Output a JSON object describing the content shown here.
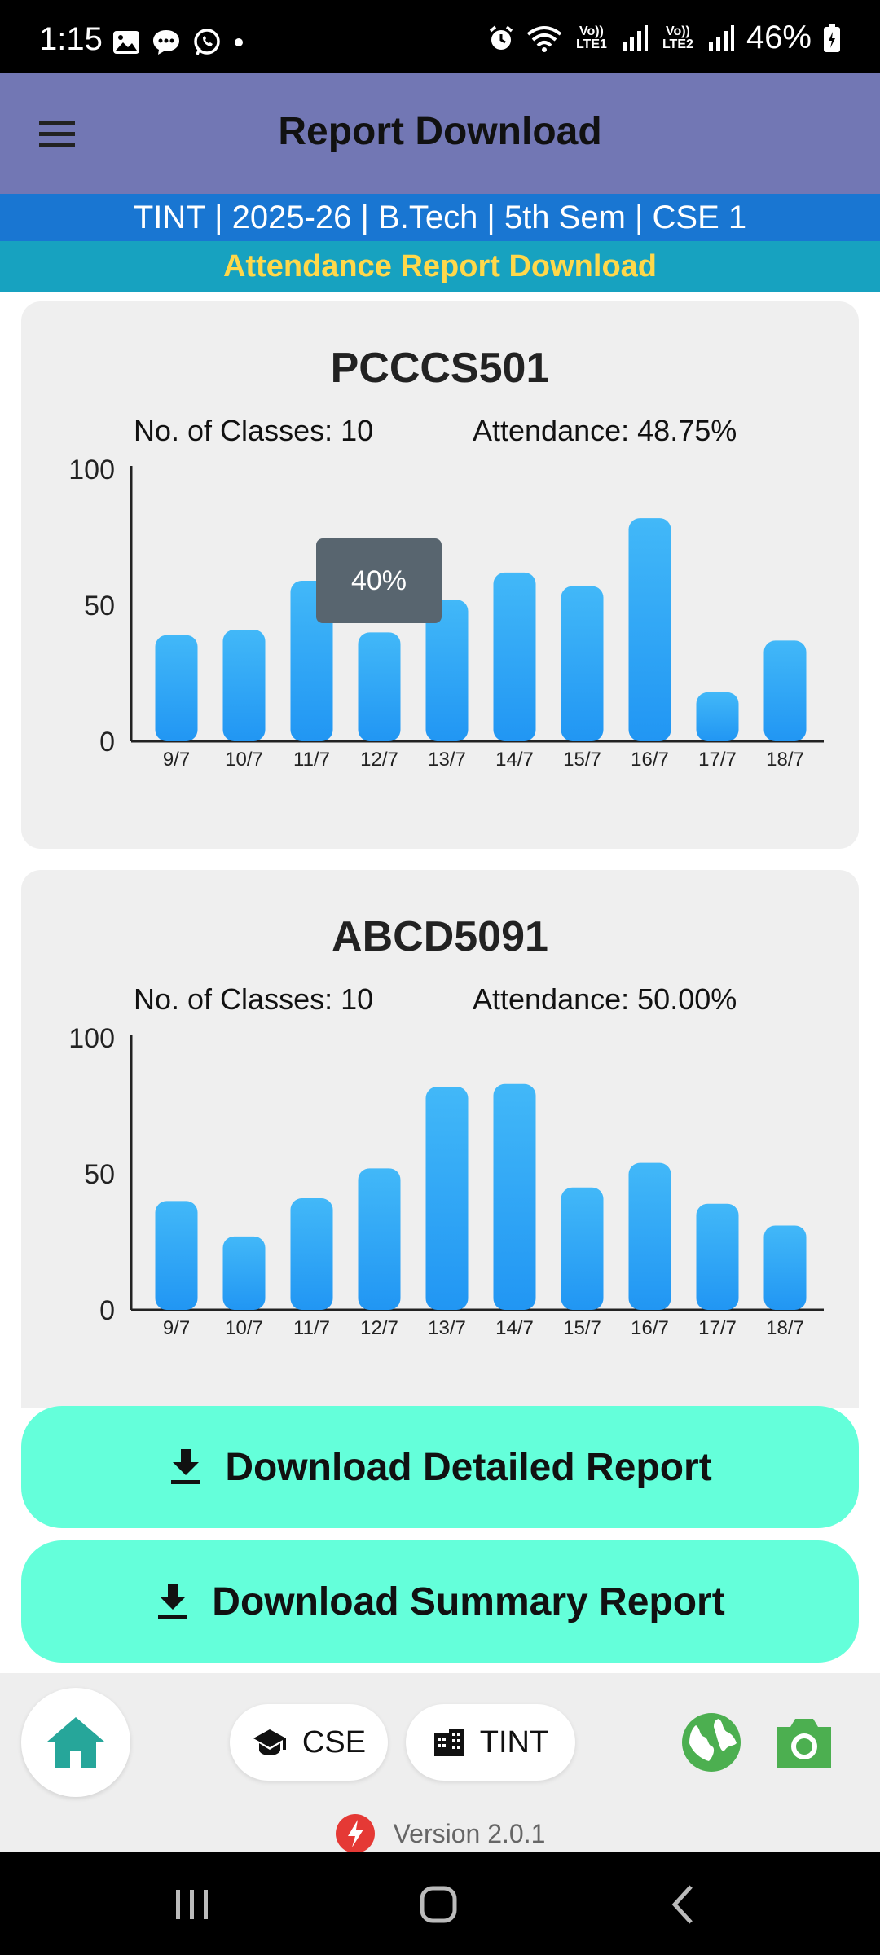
{
  "status_bar": {
    "time": "1:15",
    "battery": "46%",
    "sim1": "Vo)) LTE1",
    "sim2": "Vo)) LTE2"
  },
  "app_bar": {
    "title": "Report Download"
  },
  "info_bar": {
    "text": "TINT | 2025-26 | B.Tech | 5th Sem | CSE 1"
  },
  "sub_bar": {
    "text": "Attendance Report Download"
  },
  "subjects": [
    {
      "code": "PCCCS501",
      "classes": "No. of Classes: 10",
      "attendance": "Attendance: 48.75%",
      "tooltip": "40%"
    },
    {
      "code": "ABCD5091",
      "classes": "No. of Classes: 10",
      "attendance": "Attendance: 50.00%"
    }
  ],
  "chart_data": [
    {
      "type": "bar",
      "title": "PCCCS501",
      "categories": [
        "9/7",
        "10/7",
        "11/7",
        "12/7",
        "13/7",
        "14/7",
        "15/7",
        "16/7",
        "17/7",
        "18/7"
      ],
      "values": [
        39,
        41,
        59,
        40,
        52,
        62,
        57,
        82,
        18,
        37
      ],
      "ylim": [
        0,
        100
      ],
      "yticks": [
        "0",
        "50",
        "100"
      ],
      "color": "#2196f3"
    },
    {
      "type": "bar",
      "title": "ABCD5091",
      "categories": [
        "9/7",
        "10/7",
        "11/7",
        "12/7",
        "13/7",
        "14/7",
        "15/7",
        "16/7",
        "17/7",
        "18/7"
      ],
      "values": [
        40,
        27,
        41,
        52,
        82,
        83,
        45,
        54,
        39,
        31
      ],
      "ylim": [
        0,
        100
      ],
      "yticks": [
        "0",
        "50",
        "100"
      ],
      "color": "#2196f3"
    }
  ],
  "buttons": {
    "detailed": "Download Detailed Report",
    "summary": "Download Summary Report"
  },
  "bottom": {
    "chip_dept": "CSE",
    "chip_college": "TINT",
    "version": "Version 2.0.1"
  },
  "colors": {
    "app_bar": "#7277b4",
    "info_bar": "#1976d2",
    "sub_bar": "#17a2c0",
    "sub_bar_text": "#ffd84a",
    "button": "#64ffda",
    "accent_green": "#4caf50",
    "home_teal": "#26a69a"
  },
  "icons": {
    "menu": "menu-icon",
    "download": "download-icon",
    "home": "home-icon",
    "school": "school-icon",
    "building": "building-icon",
    "globe": "globe-icon",
    "camera": "camera-icon"
  }
}
